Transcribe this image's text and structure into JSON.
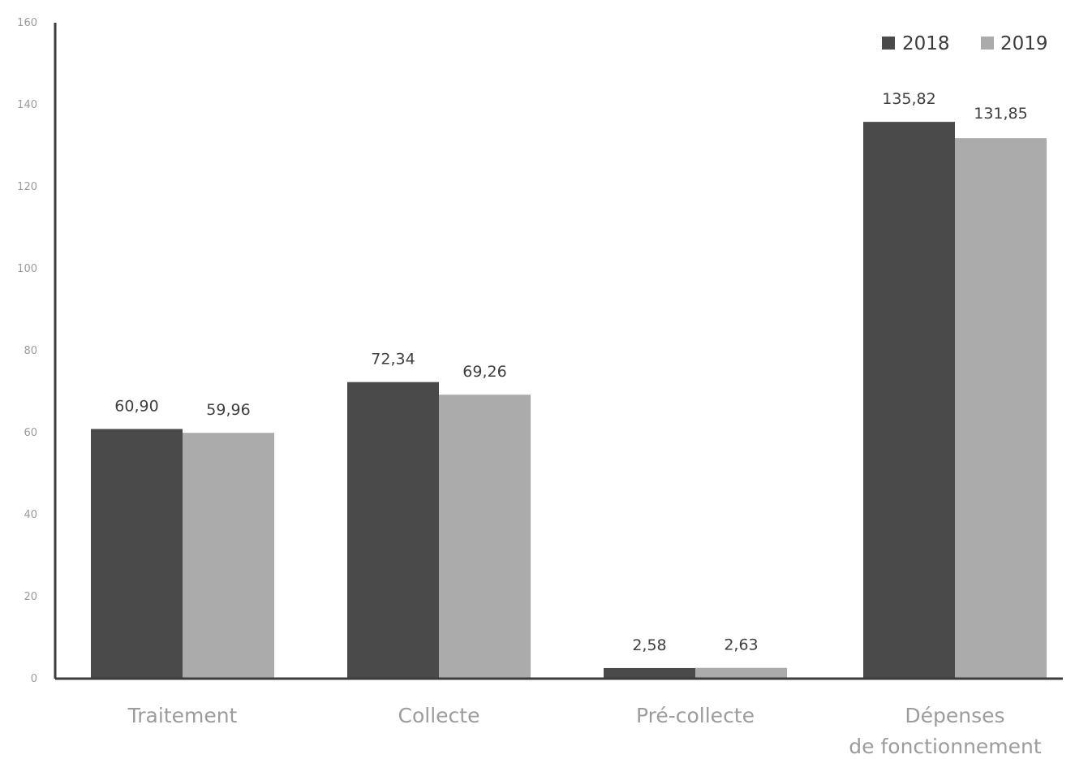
{
  "chart_data": {
    "type": "bar",
    "categories": [
      "Traitement",
      "Collecte",
      "Pré-collecte",
      "Dépenses de fonctionnement"
    ],
    "category_lines": [
      [
        "Traitement"
      ],
      [
        "Collecte"
      ],
      [
        "Pré-collecte"
      ],
      [
        "Dépenses",
        "de fonctionnement"
      ]
    ],
    "series": [
      {
        "name": "2018",
        "color": "#4a4a4a",
        "values": [
          60.9,
          72.34,
          2.58,
          135.82
        ],
        "labels": [
          "60,90",
          "72,34",
          "2,58",
          "135,82"
        ]
      },
      {
        "name": "2019",
        "color": "#ababab",
        "values": [
          59.96,
          69.26,
          2.63,
          131.85
        ],
        "labels": [
          "59,96",
          "69,26",
          "2,63",
          "131,85"
        ]
      }
    ],
    "ylim": [
      0,
      160
    ],
    "yticks": [
      0,
      20,
      40,
      60,
      80,
      100,
      120,
      140,
      160
    ],
    "title": "",
    "xlabel": "",
    "ylabel": "",
    "grid": false,
    "legend": "top-right"
  }
}
